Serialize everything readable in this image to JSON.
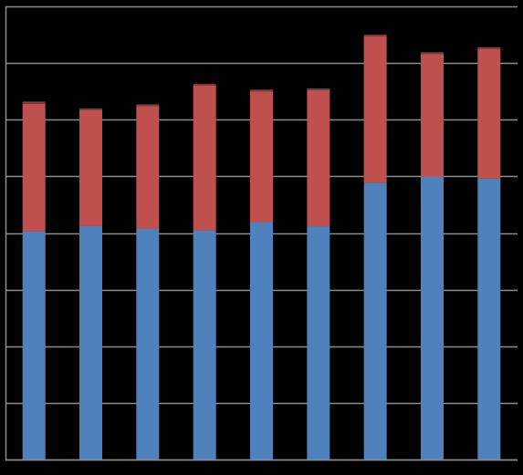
{
  "chart_data": {
    "type": "bar",
    "stacked": true,
    "categories": [
      "",
      "",
      "",
      "",
      "",
      "",
      "",
      "",
      ""
    ],
    "series": [
      {
        "values": [
          4.03,
          4.13,
          4.08,
          4.05,
          4.2,
          4.12,
          4.89,
          4.99,
          4.96
        ]
      },
      {
        "values": [
          2.25,
          2.04,
          2.16,
          2.55,
          2.3,
          2.4,
          2.58,
          2.17,
          2.29
        ]
      },
      {
        "values": [
          0.04,
          0.03,
          0.03,
          0.03,
          0.03,
          0.03,
          0.03,
          0.03,
          0.03
        ]
      }
    ],
    "ylim": [
      0,
      8
    ],
    "grid": true,
    "legend": "none",
    "title": "",
    "xlabel": "",
    "ylabel": ""
  },
  "colors": {
    "background": "#000000",
    "gridline": "#8c8c8c",
    "axis": "#8c8c8c",
    "series": [
      "#4f81bd",
      "#c0504d",
      "#8b3a38"
    ]
  }
}
